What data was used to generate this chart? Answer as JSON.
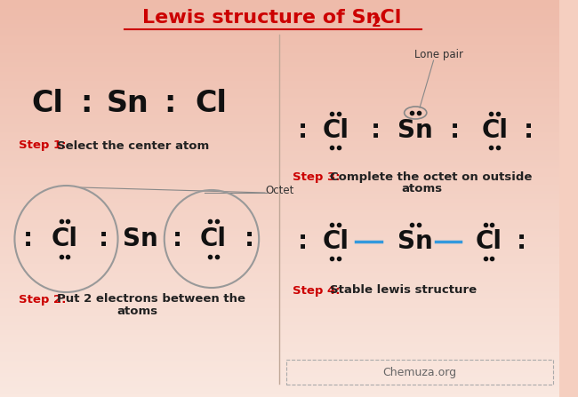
{
  "title_color": "#cc0000",
  "atom_color": "#111111",
  "step_label_color": "#cc0000",
  "step_text_color": "#222222",
  "bond_color": "#3399dd",
  "dot_color": "#111111",
  "bg_color": "#f5cfc0",
  "step1_label": "Step 1:",
  "step1_text": "Select the center atom",
  "step2_label": "Step 2:",
  "step2_text_1": "Put 2 electrons between the",
  "step2_text_2": "atoms",
  "step3_label": "Step 3:",
  "step3_text_1": "Complete the octet on outside",
  "step3_text_2": "atoms",
  "step4_label": "Step 4:",
  "step4_text": "Stable lewis structure",
  "lone_pair_label": "Lone pair",
  "octet_label": "Octet",
  "chemuza_text": "Chemuza.org",
  "title_main": "Lewis structure of SnCl",
  "title_sub": "2"
}
